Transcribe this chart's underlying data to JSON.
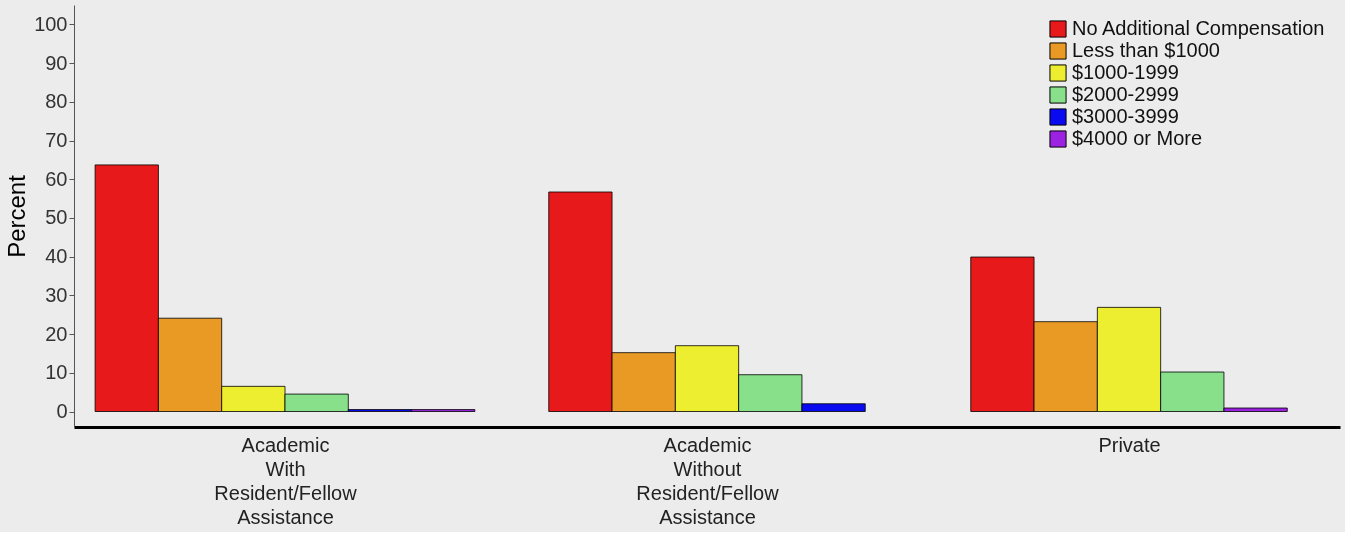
{
  "chart_data": {
    "type": "bar",
    "ylabel": "Percent",
    "categories": [
      "Academic With Resident/Fellow Assistance",
      "Academic Without Resident/Fellow Assistance",
      "Private"
    ],
    "series": [
      {
        "name": "No Additional Compensation",
        "color": "#e8191a",
        "values": [
          63.7,
          56.7,
          39.9
        ]
      },
      {
        "name": "Less than $1000",
        "color": "#e99a24",
        "values": [
          24.1,
          15.2,
          23.2
        ]
      },
      {
        "name": "$1000-1999",
        "color": "#eeee30",
        "values": [
          6.5,
          17.0,
          26.9
        ]
      },
      {
        "name": "$2000-2999",
        "color": "#88e08a",
        "values": [
          4.5,
          9.5,
          10.2
        ]
      },
      {
        "name": "$3000-3999",
        "color": "#0a0af0",
        "values": [
          0.5,
          2.0,
          null
        ]
      },
      {
        "name": "$4000 or More",
        "color": "#9a22e0",
        "values": [
          0.5,
          null,
          0.9
        ]
      }
    ],
    "ylim": [
      -4,
      105
    ],
    "yticks": [
      0,
      10,
      20,
      30,
      40,
      50,
      60,
      70,
      80,
      90,
      100
    ],
    "grid": false,
    "legend": "top right"
  }
}
